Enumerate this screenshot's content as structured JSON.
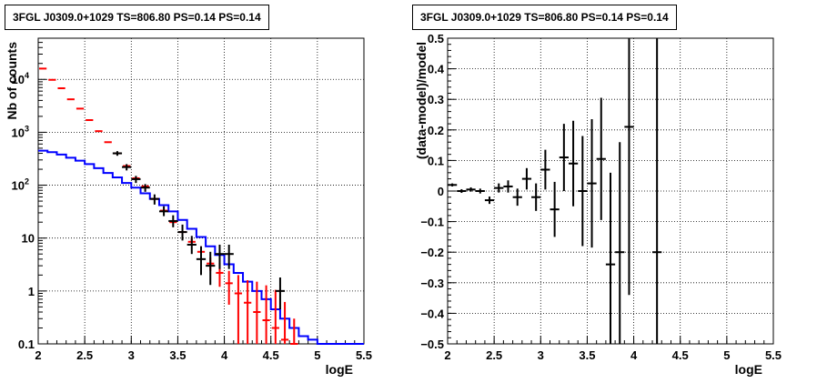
{
  "chart_data": [
    {
      "type": "line",
      "title": "3FGL J0309.0+1029 TS=806.80 PS=0.14 PS=0.14",
      "xlabel": "logE",
      "ylabel": "Nb of counts",
      "xlim": [
        2,
        5.5
      ],
      "ylim": [
        0.1,
        60000
      ],
      "yscale": "log",
      "grid": true,
      "x_ticks": [
        "2",
        "2.5",
        "3",
        "3.5",
        "4",
        "4.5",
        "5",
        "5.5"
      ],
      "y_ticks": [
        "0.1",
        "1",
        "10",
        "10^2",
        "10^3",
        "10^4"
      ],
      "bin_edges": [
        2.0,
        2.1,
        2.2,
        2.3,
        2.4,
        2.5,
        2.6,
        2.7,
        2.8,
        2.9,
        3.0,
        3.1,
        3.2,
        3.3,
        3.4,
        3.5,
        3.6,
        3.7,
        3.8,
        3.9,
        4.0,
        4.1,
        4.2,
        4.3,
        4.4,
        4.5,
        4.6,
        4.7,
        4.8,
        4.9,
        5.0,
        5.1,
        5.2,
        5.3,
        5.4,
        5.5
      ],
      "series": [
        {
          "color": "#ff0000",
          "style": "markers",
          "values": [
            16000,
            9800,
            6800,
            4200,
            2800,
            1700,
            1050,
            650,
            400,
            230,
            135,
            95,
            55,
            33,
            20,
            13,
            8.5,
            5.5,
            3.3,
            2.2,
            1.4,
            0.9,
            0.6,
            0.4,
            0.28,
            0.2,
            0.12,
            0.1
          ],
          "errors_low": [
            0,
            0,
            0,
            0,
            0,
            0,
            0,
            0,
            0,
            0,
            0,
            0,
            0,
            0,
            0,
            0,
            1.3,
            1.3,
            0.9,
            1.0,
            0.85,
            0.8,
            0.55,
            0.38,
            0.27,
            0.19,
            0.115,
            0.095
          ],
          "errors_high": [
            0,
            0,
            0,
            0,
            0,
            0,
            0,
            0,
            0,
            0,
            0,
            0,
            0,
            0,
            0,
            0,
            1.5,
            1.5,
            1.0,
            1.2,
            1.0,
            1.1,
            1.0,
            1.1,
            1.0,
            0.85,
            0.5,
            0.2
          ]
        },
        {
          "color": "#0000ff",
          "style": "step",
          "values": [
            450,
            420,
            380,
            330,
            290,
            250,
            210,
            170,
            140,
            110,
            90,
            70,
            55,
            42,
            32,
            22,
            15,
            10.5,
            7,
            4.8,
            3.2,
            2.2,
            1.5,
            1.0,
            0.7,
            0.45,
            0.3,
            0.2,
            0.14,
            0.12,
            0.1,
            0.1,
            0.1,
            0.1,
            0.1
          ]
        },
        {
          "color": "#000000",
          "style": "errorbars",
          "points": [
            {
              "x": 2.85,
              "y": 400,
              "ylo": 360,
              "yhi": 440
            },
            {
              "x": 2.95,
              "y": 220,
              "ylo": 190,
              "yhi": 250
            },
            {
              "x": 3.05,
              "y": 130,
              "ylo": 110,
              "yhi": 150
            },
            {
              "x": 3.15,
              "y": 90,
              "ylo": 75,
              "yhi": 105
            },
            {
              "x": 3.25,
              "y": 55,
              "ylo": 43,
              "yhi": 67
            },
            {
              "x": 3.35,
              "y": 32,
              "ylo": 26,
              "yhi": 40
            },
            {
              "x": 3.45,
              "y": 21,
              "ylo": 16,
              "yhi": 27
            },
            {
              "x": 3.55,
              "y": 13,
              "ylo": 9,
              "yhi": 18
            },
            {
              "x": 3.65,
              "y": 7.5,
              "ylo": 5,
              "yhi": 11
            },
            {
              "x": 3.75,
              "y": 4,
              "ylo": 2,
              "yhi": 7
            },
            {
              "x": 3.85,
              "y": 3,
              "ylo": 1.3,
              "yhi": 5.5
            },
            {
              "x": 3.95,
              "y": 5,
              "ylo": 2.6,
              "yhi": 7.5
            },
            {
              "x": 4.05,
              "y": 5,
              "ylo": 2.6,
              "yhi": 7.5
            },
            {
              "x": 4.6,
              "y": 1,
              "ylo": 0.45,
              "yhi": 1.8
            }
          ]
        }
      ]
    },
    {
      "type": "scatter",
      "title": "3FGL J0309.0+1029 TS=806.80 PS=0.14 PS=0.14",
      "xlabel": "logE",
      "ylabel": "(data-model)/model",
      "xlim": [
        2,
        5.5
      ],
      "ylim": [
        -0.5,
        0.5
      ],
      "grid": true,
      "x_ticks": [
        "2",
        "2.5",
        "3",
        "3.5",
        "4",
        "4.5",
        "5",
        "5.5"
      ],
      "y_ticks": [
        "-0.5",
        "-0.4",
        "-0.3",
        "-0.2",
        "-0.1",
        "0",
        "0.1",
        "0.2",
        "0.3",
        "0.4",
        "0.5"
      ],
      "series": [
        {
          "color": "#000000",
          "points": [
            {
              "x": 2.05,
              "y": 0.02,
              "err": 0.005
            },
            {
              "x": 2.15,
              "y": 0.0,
              "err": 0.006
            },
            {
              "x": 2.25,
              "y": 0.005,
              "err": 0.007
            },
            {
              "x": 2.35,
              "y": 0.0,
              "err": 0.008
            },
            {
              "x": 2.45,
              "y": -0.03,
              "err": 0.012
            },
            {
              "x": 2.55,
              "y": 0.01,
              "err": 0.015
            },
            {
              "x": 2.65,
              "y": 0.015,
              "err": 0.02
            },
            {
              "x": 2.75,
              "y": -0.02,
              "err": 0.028
            },
            {
              "x": 2.85,
              "y": 0.04,
              "err": 0.035
            },
            {
              "x": 2.95,
              "y": -0.02,
              "err": 0.045
            },
            {
              "x": 3.05,
              "y": 0.07,
              "err": 0.065
            },
            {
              "x": 3.15,
              "y": -0.06,
              "err": 0.09
            },
            {
              "x": 3.25,
              "y": 0.11,
              "err": 0.11
            },
            {
              "x": 3.35,
              "y": 0.09,
              "err": 0.14
            },
            {
              "x": 3.45,
              "y": 0.0,
              "err": 0.18
            },
            {
              "x": 3.55,
              "y": 0.025,
              "err": 0.21
            },
            {
              "x": 3.65,
              "y": 0.105,
              "err": 0.2
            },
            {
              "x": 3.75,
              "y": -0.24,
              "err": 0.3
            },
            {
              "x": 3.85,
              "y": -0.2,
              "err": 0.36
            },
            {
              "x": 3.95,
              "y": 0.21,
              "err": 0.55
            },
            {
              "x": 4.25,
              "y": -0.2,
              "err": 0.8
            }
          ]
        }
      ]
    }
  ]
}
